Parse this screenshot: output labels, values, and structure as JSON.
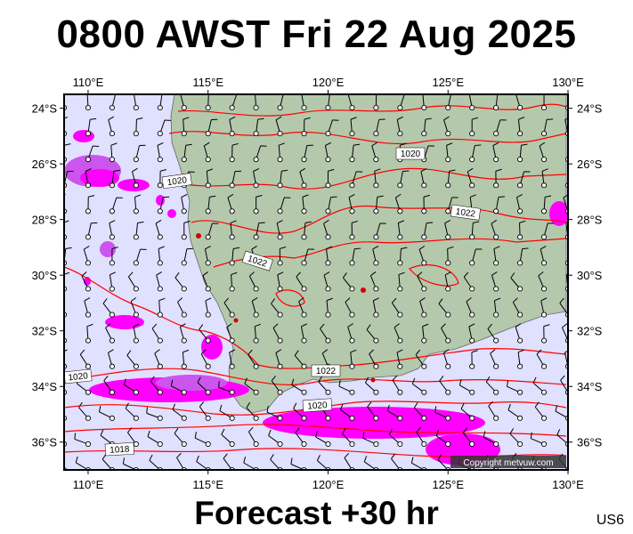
{
  "header": {
    "title": "0800 AWST Fri 22 Aug 2025"
  },
  "footer": {
    "subtitle": "Forecast +30 hr",
    "region_code": "US6"
  },
  "map": {
    "lon_range": [
      109,
      130
    ],
    "lat_range": [
      -37,
      -23.5
    ],
    "lon_ticks": [
      {
        "v": 110,
        "label": "110°E"
      },
      {
        "v": 115,
        "label": "115°E"
      },
      {
        "v": 120,
        "label": "120°E"
      },
      {
        "v": 125,
        "label": "125°E"
      },
      {
        "v": 130,
        "label": "130°E"
      }
    ],
    "lat_ticks": [
      {
        "v": -24,
        "label": "24°S"
      },
      {
        "v": -26,
        "label": "26°S"
      },
      {
        "v": -28,
        "label": "28°S"
      },
      {
        "v": -30,
        "label": "30°S"
      },
      {
        "v": -32,
        "label": "32°S"
      },
      {
        "v": -34,
        "label": "34°S"
      },
      {
        "v": -36,
        "label": "36°S"
      }
    ],
    "isobar_labels": [
      "1020",
      "1020",
      "1022",
      "1022",
      "1022",
      "1020",
      "1020",
      "1018"
    ],
    "copyright": "Copyright metvuw.com",
    "colors": {
      "ocean": "#e0e0ff",
      "land": "#b4c8ac",
      "isobar": "#ff0000",
      "precip_heavy": "#ff00ff",
      "precip_light": "#cc55ee"
    }
  }
}
